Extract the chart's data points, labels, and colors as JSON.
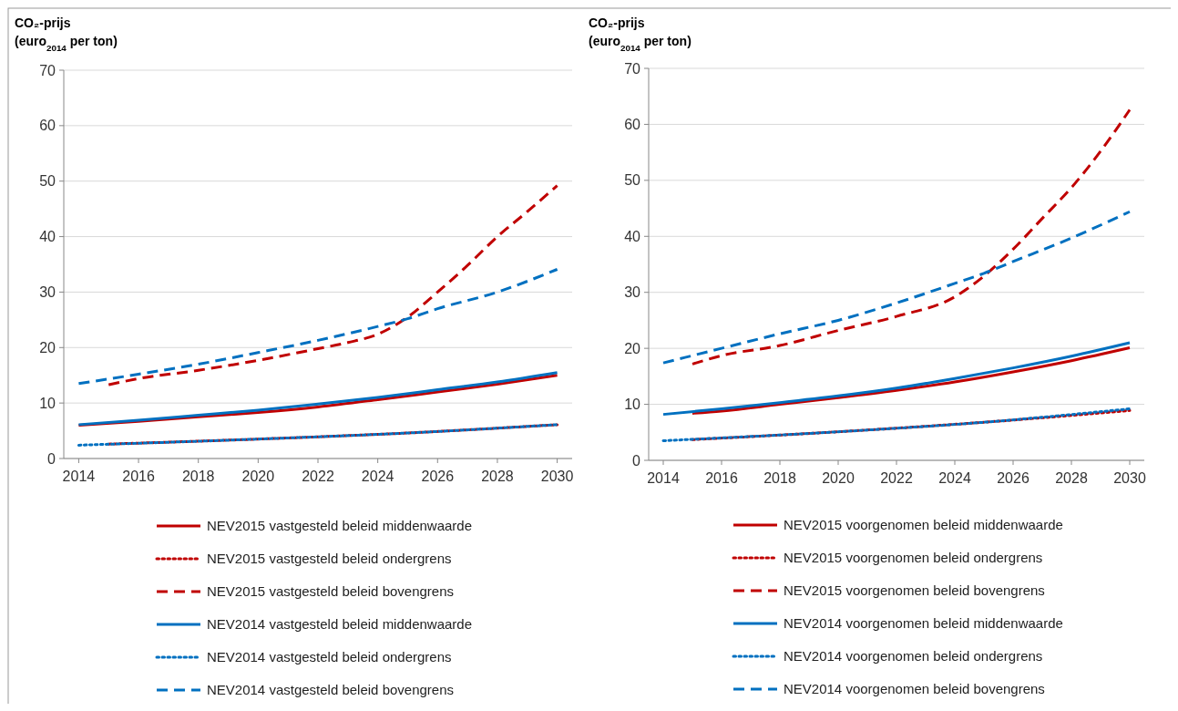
{
  "chart_data": [
    {
      "type": "line",
      "ylabel": "CO₂-prijs\n(euro$_{2014}$ per ton)",
      "xlim": [
        2013.5,
        2030.5
      ],
      "xticks": [
        2014,
        2016,
        2018,
        2020,
        2022,
        2024,
        2026,
        2028,
        2030
      ],
      "ylim": [
        0,
        70
      ],
      "yticks": [
        0,
        10,
        20,
        30,
        40,
        50,
        60,
        70
      ],
      "grid": "y",
      "legend": "bottom",
      "marker": "none",
      "series": [
        {
          "name": "NEV2015 vastgesteld beleid middenwaarde",
          "color": "#c00000",
          "line_style": "solid",
          "x": [
            2014,
            2016,
            2018,
            2020,
            2022,
            2024,
            2026,
            2028,
            2030
          ],
          "values": [
            6.0,
            6.7,
            7.5,
            8.3,
            9.3,
            10.6,
            12.0,
            13.4,
            15.0
          ]
        },
        {
          "name": "NEV2015 vastgesteld beleid ondergrens",
          "color": "#c00000",
          "line_style": "dotted",
          "x": [
            2015,
            2020,
            2025,
            2030
          ],
          "values": [
            2.6,
            3.5,
            4.6,
            6.1
          ]
        },
        {
          "name": "NEV2015 vastgesteld beleid bovengrens",
          "color": "#c00000",
          "line_style": "dashed",
          "x": [
            2015,
            2016,
            2018,
            2020,
            2022,
            2023,
            2024,
            2025,
            2026,
            2027,
            2028,
            2029,
            2030
          ],
          "values": [
            13.3,
            14.4,
            15.9,
            17.7,
            19.8,
            20.9,
            22.4,
            25.5,
            30.0,
            34.8,
            40.0,
            44.5,
            49.2
          ]
        },
        {
          "name": "NEV2014 vastgesteld beleid middenwaarde",
          "color": "#0070c0",
          "line_style": "solid",
          "x": [
            2014,
            2016,
            2018,
            2020,
            2022,
            2024,
            2026,
            2028,
            2030
          ],
          "values": [
            6.1,
            6.9,
            7.8,
            8.7,
            9.8,
            11.0,
            12.4,
            13.8,
            15.5
          ]
        },
        {
          "name": "NEV2014 vastgesteld beleid ondergrens",
          "color": "#0070c0",
          "line_style": "dotted",
          "x": [
            2014,
            2020,
            2025,
            2030
          ],
          "values": [
            2.4,
            3.5,
            4.6,
            6.1
          ]
        },
        {
          "name": "NEV2014 vastgesteld beleid bovengrens",
          "color": "#0070c0",
          "line_style": "dashed",
          "x": [
            2014,
            2016,
            2018,
            2020,
            2022,
            2024,
            2025,
            2026,
            2028,
            2030
          ],
          "values": [
            13.5,
            15.2,
            17.0,
            19.1,
            21.3,
            23.8,
            25.2,
            27.0,
            30.0,
            34.1
          ]
        }
      ]
    },
    {
      "type": "line",
      "ylabel": "CO₂-prijs\n(euro$_{2014}$ per ton)",
      "xlim": [
        2013.5,
        2030.5
      ],
      "xticks": [
        2014,
        2016,
        2018,
        2020,
        2022,
        2024,
        2026,
        2028,
        2030
      ],
      "ylim": [
        0,
        70
      ],
      "yticks": [
        0,
        10,
        20,
        30,
        40,
        50,
        60,
        70
      ],
      "grid": "y",
      "legend": "bottom",
      "marker": "none",
      "series": [
        {
          "name": "NEV2015 voorgenomen beleid middenwaarde",
          "color": "#c00000",
          "line_style": "solid",
          "x": [
            2015,
            2016,
            2018,
            2020,
            2022,
            2024,
            2026,
            2028,
            2030
          ],
          "values": [
            8.4,
            8.8,
            10.0,
            11.2,
            12.5,
            14.0,
            15.8,
            17.8,
            20.1
          ]
        },
        {
          "name": "NEV2015 voorgenomen beleid ondergrens",
          "color": "#c00000",
          "line_style": "dotted",
          "x": [
            2015,
            2020,
            2025,
            2030
          ],
          "values": [
            3.7,
            5.1,
            6.8,
            8.9
          ]
        },
        {
          "name": "NEV2015 voorgenomen beleid bovengrens",
          "color": "#c00000",
          "line_style": "dashed",
          "x": [
            2015,
            2016,
            2018,
            2020,
            2022,
            2024,
            2025,
            2026,
            2027,
            2028,
            2029,
            2030
          ],
          "values": [
            17.2,
            18.7,
            20.5,
            23.2,
            25.7,
            29.2,
            32.9,
            37.7,
            43.2,
            48.7,
            55.2,
            62.6
          ]
        },
        {
          "name": "NEV2014 voorgenomen beleid middenwaarde",
          "color": "#0070c0",
          "line_style": "solid",
          "x": [
            2014,
            2016,
            2018,
            2020,
            2022,
            2024,
            2026,
            2028,
            2030
          ],
          "values": [
            8.2,
            9.2,
            10.3,
            11.5,
            12.9,
            14.6,
            16.5,
            18.6,
            21.0
          ]
        },
        {
          "name": "NEV2014 voorgenomen beleid ondergrens",
          "color": "#0070c0",
          "line_style": "dotted",
          "x": [
            2014,
            2020,
            2025,
            2030
          ],
          "values": [
            3.5,
            5.1,
            6.8,
            9.2
          ]
        },
        {
          "name": "NEV2014 voorgenomen beleid bovengrens",
          "color": "#0070c0",
          "line_style": "dashed",
          "x": [
            2014,
            2016,
            2018,
            2020,
            2022,
            2024,
            2025,
            2026,
            2028,
            2030
          ],
          "values": [
            17.4,
            20.0,
            22.6,
            25.0,
            28.1,
            31.6,
            33.4,
            35.5,
            39.7,
            44.4
          ]
        }
      ]
    }
  ]
}
